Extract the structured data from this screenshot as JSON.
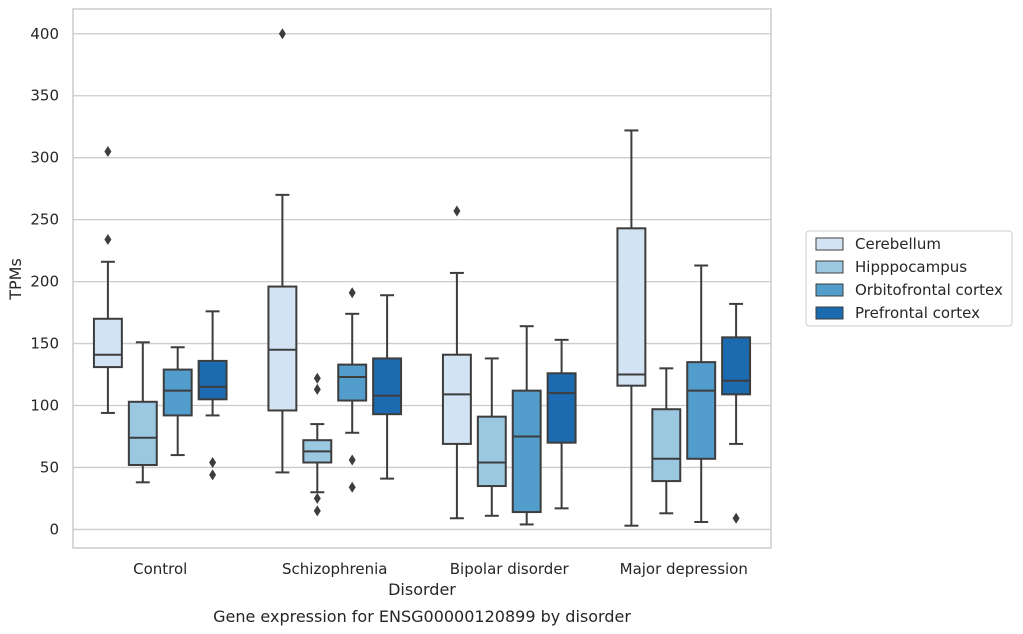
{
  "chart_data": {
    "type": "box",
    "title": "Gene expression for ENSG00000120899 by disorder",
    "xlabel": "Disorder",
    "ylabel": "TPMs",
    "ylim": [
      -15,
      420
    ],
    "yticks": [
      0,
      50,
      100,
      150,
      200,
      250,
      300,
      350,
      400
    ],
    "grid": true,
    "legend_position": "right",
    "categories": [
      "Control",
      "Schizophrenia",
      "Bipolar disorder",
      "Major depression"
    ],
    "series": [
      {
        "name": "Cerebellum",
        "color": "#d2e3f3",
        "boxes": [
          {
            "whislo": 94,
            "q1": 131,
            "med": 141,
            "q3": 170,
            "whishi": 216,
            "fliers": [
              234,
              305
            ]
          },
          {
            "whislo": 46,
            "q1": 96,
            "med": 145,
            "q3": 196,
            "whishi": 270,
            "fliers": [
              400
            ]
          },
          {
            "whislo": 9,
            "q1": 69,
            "med": 109,
            "q3": 141,
            "whishi": 207,
            "fliers": [
              257
            ]
          },
          {
            "whislo": 3,
            "q1": 116,
            "med": 125,
            "q3": 243,
            "whishi": 322,
            "fliers": []
          }
        ]
      },
      {
        "name": "Hipppocampus",
        "color": "#9ac8e0",
        "boxes": [
          {
            "whislo": 38,
            "q1": 52,
            "med": 74,
            "q3": 103,
            "whishi": 151,
            "fliers": []
          },
          {
            "whislo": 30,
            "q1": 54,
            "med": 63,
            "q3": 72,
            "whishi": 85,
            "fliers": [
              15,
              25,
              113,
              122
            ]
          },
          {
            "whislo": 11,
            "q1": 35,
            "med": 54,
            "q3": 91,
            "whishi": 138,
            "fliers": []
          },
          {
            "whislo": 13,
            "q1": 39,
            "med": 57,
            "q3": 97,
            "whishi": 130,
            "fliers": []
          }
        ]
      },
      {
        "name": "Orbitofrontal cortex",
        "color": "#529dcc",
        "boxes": [
          {
            "whislo": 60,
            "q1": 92,
            "med": 112,
            "q3": 129,
            "whishi": 147,
            "fliers": []
          },
          {
            "whislo": 78,
            "q1": 104,
            "med": 123,
            "q3": 133,
            "whishi": 174,
            "fliers": [
              34,
              56,
              191
            ]
          },
          {
            "whislo": 4,
            "q1": 14,
            "med": 75,
            "q3": 112,
            "whishi": 164,
            "fliers": []
          },
          {
            "whislo": 6,
            "q1": 57,
            "med": 112,
            "q3": 135,
            "whishi": 213,
            "fliers": []
          }
        ]
      },
      {
        "name": "Prefrontal cortex",
        "color": "#1c6aaf",
        "boxes": [
          {
            "whislo": 92,
            "q1": 105,
            "med": 115,
            "q3": 136,
            "whishi": 176,
            "fliers": [
              44,
              54
            ]
          },
          {
            "whislo": 41,
            "q1": 93,
            "med": 108,
            "q3": 138,
            "whishi": 189,
            "fliers": []
          },
          {
            "whislo": 17,
            "q1": 70,
            "med": 110,
            "q3": 126,
            "whishi": 153,
            "fliers": []
          },
          {
            "whislo": 69,
            "q1": 109,
            "med": 120,
            "q3": 155,
            "whishi": 182,
            "fliers": [
              9
            ]
          }
        ]
      }
    ]
  }
}
